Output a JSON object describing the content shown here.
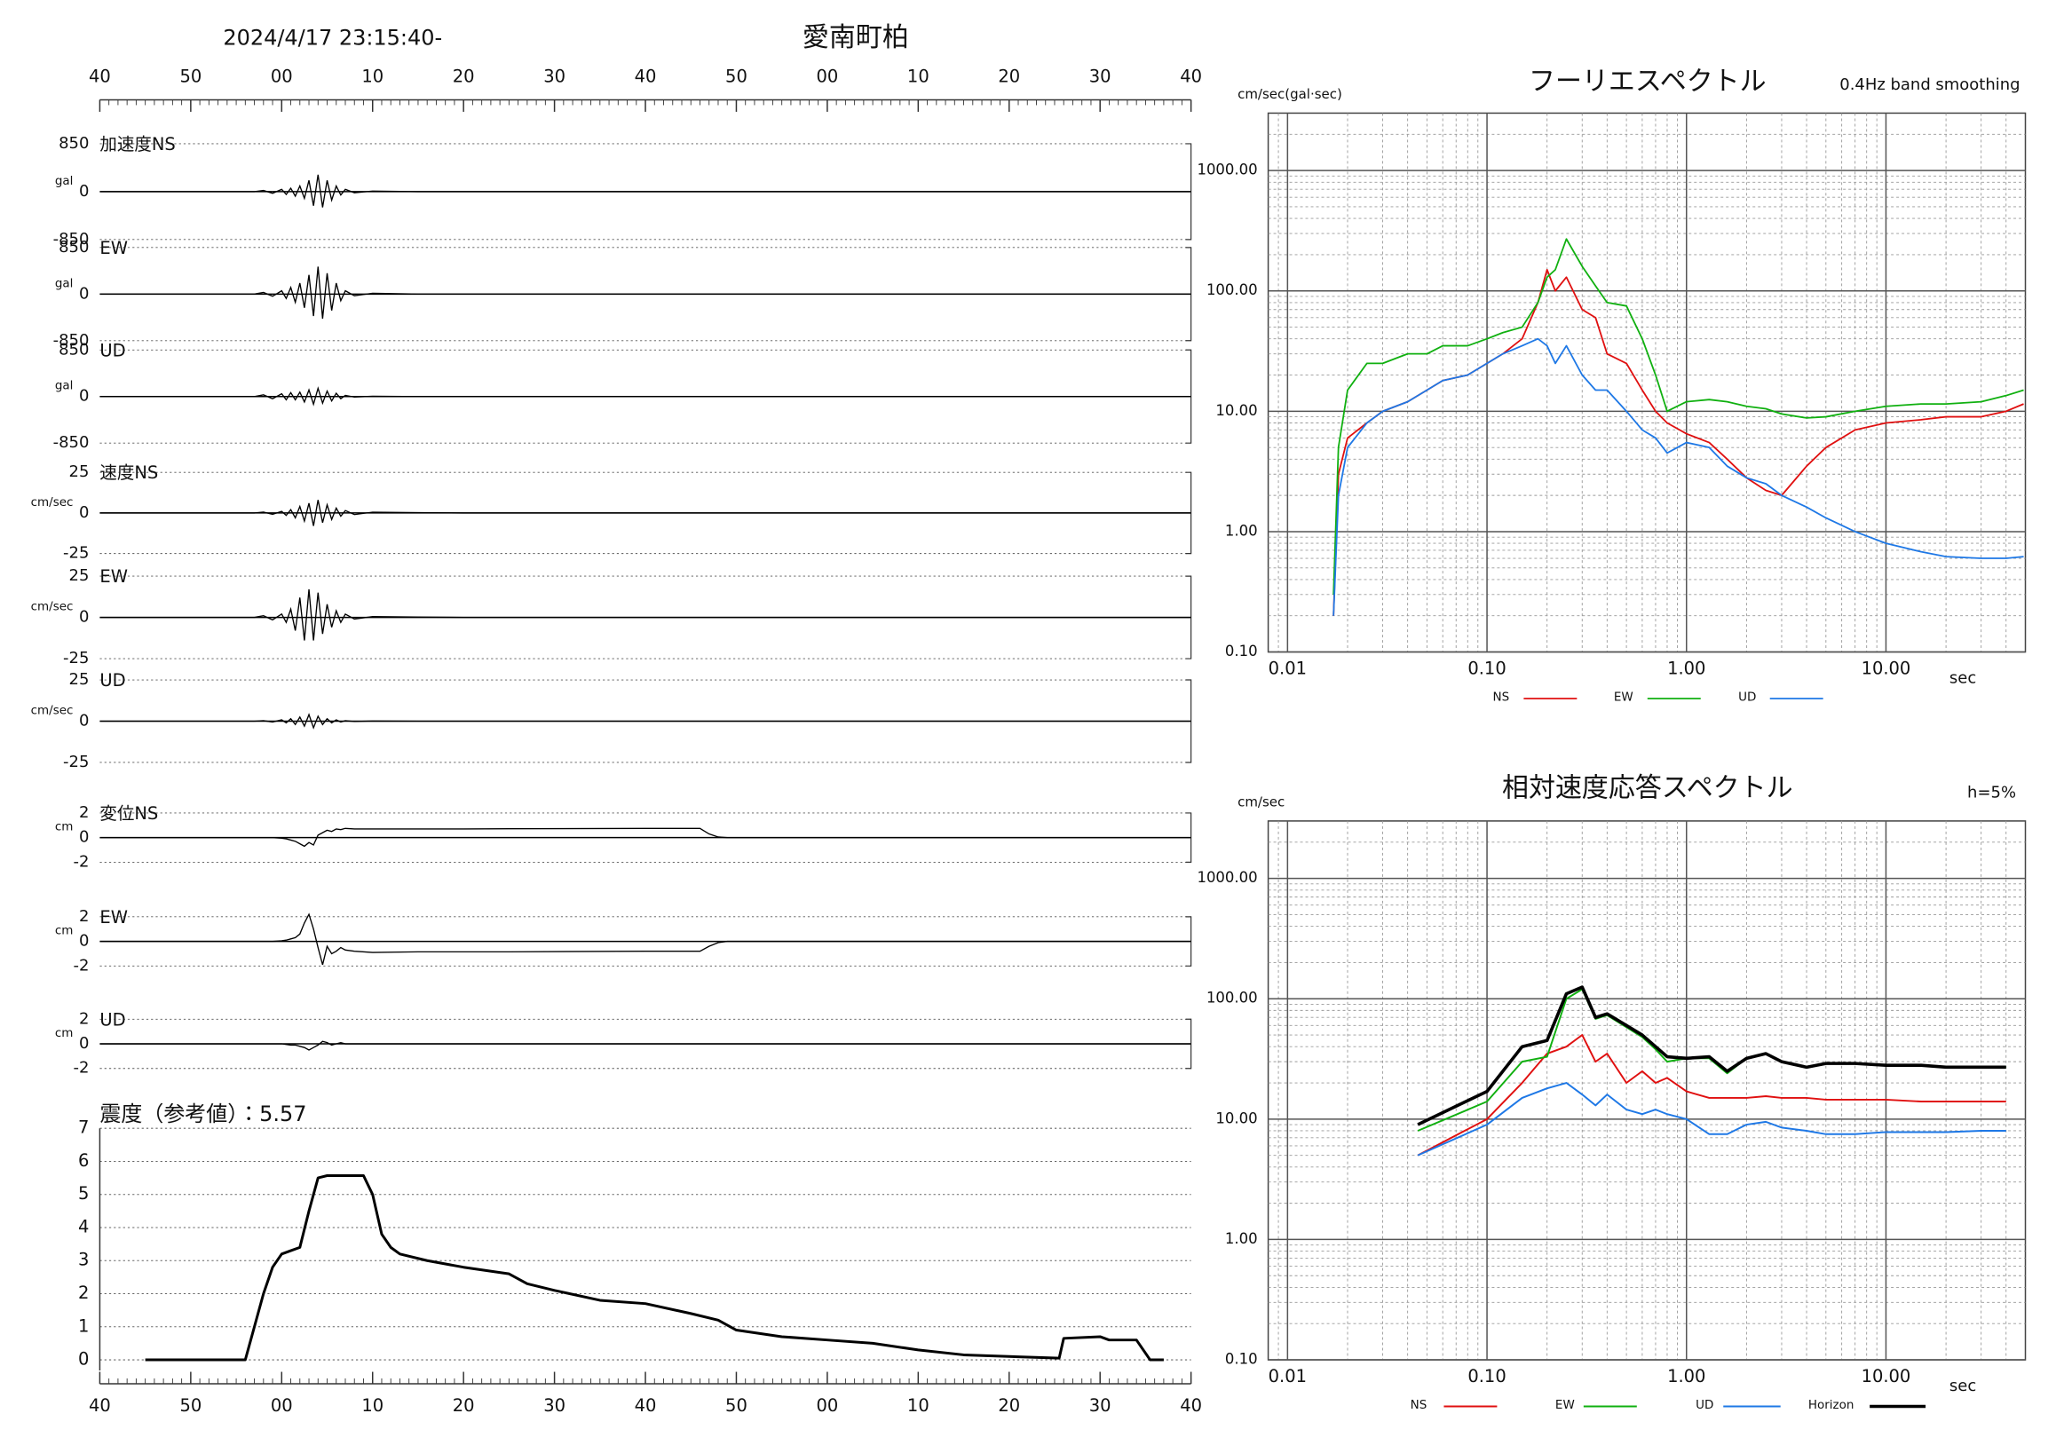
{
  "chart_data": [
    {
      "type": "waveform",
      "title": "愛南町柏",
      "subtitle": "2024/4/17 23:15:40-",
      "xlim": [
        0,
        120
      ],
      "xticks": [
        {
          "value": 0,
          "label": "40"
        },
        {
          "value": 10,
          "label": "50"
        },
        {
          "value": 20,
          "label": "00"
        },
        {
          "value": 30,
          "label": "10"
        },
        {
          "value": 40,
          "label": "20"
        },
        {
          "value": 50,
          "label": "30"
        },
        {
          "value": 60,
          "label": "40"
        },
        {
          "value": 70,
          "label": "50"
        },
        {
          "value": 80,
          "label": "00"
        },
        {
          "value": 90,
          "label": "10"
        },
        {
          "value": 100,
          "label": "20"
        },
        {
          "value": 110,
          "label": "30"
        },
        {
          "value": 120,
          "label": "40"
        }
      ],
      "x": [
        0,
        17,
        18,
        19,
        20,
        20.5,
        21,
        21.5,
        22,
        22.5,
        23,
        23.5,
        24,
        24.5,
        25,
        25.5,
        26,
        26.5,
        27,
        28,
        30,
        35,
        40,
        45,
        60,
        66,
        67,
        68,
        69,
        70,
        120
      ],
      "series": [
        {
          "name": "加速度NS",
          "unit": "gal",
          "color": "#000000",
          "ylim": [
            -850,
            850
          ],
          "yticks": [
            850,
            0,
            -850
          ],
          "values": [
            0,
            0,
            20,
            -30,
            40,
            -50,
            60,
            -80,
            100,
            -120,
            200,
            -250,
            300,
            -280,
            200,
            -150,
            100,
            -60,
            40,
            -20,
            10,
            0,
            0,
            0,
            0,
            0,
            0,
            0,
            0,
            0,
            0
          ]
        },
        {
          "name": "EW",
          "unit": "gal",
          "color": "#000000",
          "ylim": [
            -850,
            850
          ],
          "yticks": [
            850,
            0,
            -850
          ],
          "values": [
            0,
            0,
            30,
            -40,
            60,
            -80,
            120,
            -150,
            200,
            -250,
            350,
            -400,
            500,
            -450,
            380,
            -300,
            200,
            -120,
            60,
            -30,
            15,
            0,
            0,
            0,
            0,
            0,
            0,
            0,
            0,
            0,
            0
          ]
        },
        {
          "name": "UD",
          "unit": "gal",
          "color": "#000000",
          "ylim": [
            -850,
            850
          ],
          "yticks": [
            850,
            0,
            -850
          ],
          "values": [
            0,
            0,
            30,
            -40,
            50,
            -60,
            70,
            -60,
            80,
            -100,
            120,
            -140,
            150,
            -120,
            100,
            -80,
            60,
            -40,
            20,
            -10,
            5,
            0,
            0,
            0,
            0,
            0,
            0,
            0,
            0,
            0,
            0
          ]
        },
        {
          "name": "速度NS",
          "unit": "cm/sec",
          "color": "#000000",
          "ylim": [
            -25,
            25
          ],
          "yticks": [
            25,
            0,
            -25
          ],
          "values": [
            0,
            0,
            0.5,
            -0.8,
            1,
            -1.5,
            2,
            -3,
            4,
            -5,
            6,
            -8,
            8,
            -6,
            5,
            -4,
            3,
            -2,
            1.5,
            -1,
            0.5,
            0.2,
            0,
            0,
            0,
            0,
            0,
            0,
            0,
            0,
            0
          ]
        },
        {
          "name": "EW",
          "unit": "cm/sec",
          "color": "#000000",
          "ylim": [
            -25,
            25
          ],
          "yticks": [
            25,
            0,
            -25
          ],
          "values": [
            0,
            0,
            1,
            -1.5,
            2,
            -3,
            5,
            -8,
            12,
            -14,
            17,
            -14,
            15,
            -10,
            8,
            -6,
            4,
            -3,
            2,
            -1,
            0.5,
            0.2,
            0,
            0,
            0,
            0,
            0,
            0,
            0,
            0,
            0
          ]
        },
        {
          "name": "UD",
          "unit": "cm/sec",
          "color": "#000000",
          "ylim": [
            -25,
            25
          ],
          "yticks": [
            25,
            0,
            -25
          ],
          "values": [
            0,
            0,
            0.3,
            -0.5,
            0.8,
            -1,
            1.5,
            -2,
            2.5,
            -3,
            4,
            -4,
            3,
            -2,
            1.5,
            -1,
            0.8,
            -0.5,
            0.3,
            -0.2,
            0.1,
            0,
            0,
            0,
            0,
            0,
            0,
            0,
            0,
            0,
            0
          ]
        },
        {
          "name": "変位NS",
          "unit": "cm",
          "color": "#000000",
          "ylim": [
            -2,
            2
          ],
          "yticks": [
            2,
            0,
            -2
          ],
          "values": [
            0,
            0,
            0,
            0,
            -0.05,
            -0.1,
            -0.2,
            -0.3,
            -0.5,
            -0.7,
            -0.4,
            -0.6,
            0.2,
            0.4,
            0.6,
            0.5,
            0.7,
            0.65,
            0.75,
            0.7,
            0.7,
            0.7,
            0.7,
            0.72,
            0.75,
            0.75,
            0.3,
            0.05,
            0,
            0,
            0
          ]
        },
        {
          "name": "EW",
          "unit": "cm",
          "color": "#000000",
          "ylim": [
            -2,
            2
          ],
          "yticks": [
            2,
            0,
            -2
          ],
          "values": [
            0,
            0,
            0,
            0,
            0.05,
            0.1,
            0.2,
            0.3,
            0.6,
            1.5,
            2.2,
            1.0,
            -0.5,
            -1.9,
            -0.4,
            -1.0,
            -0.8,
            -0.5,
            -0.7,
            -0.8,
            -0.9,
            -0.85,
            -0.85,
            -0.85,
            -0.8,
            -0.8,
            -0.4,
            -0.1,
            0,
            0,
            0
          ]
        },
        {
          "name": "UD",
          "unit": "cm",
          "color": "#000000",
          "ylim": [
            -2,
            2
          ],
          "yticks": [
            2,
            0,
            -2
          ],
          "values": [
            0,
            0,
            0,
            0,
            0,
            -0.05,
            -0.1,
            -0.1,
            -0.2,
            -0.3,
            -0.5,
            -0.3,
            -0.1,
            0.2,
            0.1,
            -0.1,
            0,
            0.1,
            0,
            0,
            0,
            0,
            0,
            0,
            0,
            0,
            0,
            0,
            0,
            0,
            0
          ]
        }
      ]
    },
    {
      "type": "line",
      "title": "震度（参考値）：5.57",
      "grid": true,
      "log_x": false,
      "log_y": false,
      "xlim": [
        0,
        120
      ],
      "xticks": [
        {
          "value": 0,
          "label": "40"
        },
        {
          "value": 10,
          "label": "50"
        },
        {
          "value": 20,
          "label": "00"
        },
        {
          "value": 30,
          "label": "10"
        },
        {
          "value": 40,
          "label": "20"
        },
        {
          "value": 50,
          "label": "30"
        },
        {
          "value": 60,
          "label": "40"
        },
        {
          "value": 70,
          "label": "50"
        },
        {
          "value": 80,
          "label": "00"
        },
        {
          "value": 90,
          "label": "10"
        },
        {
          "value": 100,
          "label": "20"
        },
        {
          "value": 110,
          "label": "30"
        },
        {
          "value": 120,
          "label": "40"
        }
      ],
      "ylim": [
        0,
        7
      ],
      "yticks": [
        0,
        1,
        2,
        3,
        4,
        5,
        6,
        7
      ],
      "x": [
        5,
        16,
        17,
        18,
        19,
        20,
        21,
        22,
        23,
        24,
        25,
        29,
        30,
        31,
        32,
        33,
        36,
        40,
        45,
        47,
        50,
        55,
        60,
        65,
        68,
        70,
        75,
        80,
        85,
        90,
        95,
        105.5,
        106,
        110,
        111,
        114,
        115.5,
        117
      ],
      "series": [
        {
          "color": "#000000",
          "values": [
            0,
            0,
            1,
            2,
            2.8,
            3.2,
            3.3,
            3.4,
            4.5,
            5.5,
            5.57,
            5.57,
            5,
            3.8,
            3.4,
            3.2,
            3.0,
            2.8,
            2.6,
            2.3,
            2.1,
            1.8,
            1.7,
            1.4,
            1.2,
            0.9,
            0.7,
            0.6,
            0.5,
            0.3,
            0.15,
            0.05,
            0.65,
            0.7,
            0.6,
            0.6,
            0,
            0
          ]
        }
      ]
    },
    {
      "type": "line",
      "title": "フーリエスペクトル",
      "note": "0.4Hz band smoothing",
      "y_label": "cm/sec(gal·sec)",
      "x_label": "sec",
      "grid": true,
      "log_x": true,
      "log_y": true,
      "xlim": [
        0.008,
        50
      ],
      "xticks": [
        0.01,
        {
          "value": 0.1,
          "label": "0.10"
        },
        {
          "value": 1,
          "label": "1.00"
        },
        {
          "value": 10,
          "label": "10.00"
        }
      ],
      "ylim": [
        0.1,
        3000
      ],
      "yticks": [
        {
          "value": 0.1,
          "label": "0.10"
        },
        {
          "value": 1,
          "label": "1.00"
        },
        {
          "value": 10,
          "label": "10.00"
        },
        {
          "value": 100,
          "label": "100.00"
        },
        {
          "value": 1000,
          "label": "1000.00"
        }
      ],
      "x": [
        0.017,
        0.018,
        0.02,
        0.025,
        0.03,
        0.04,
        0.05,
        0.06,
        0.08,
        0.1,
        0.12,
        0.15,
        0.18,
        0.2,
        0.22,
        0.25,
        0.3,
        0.35,
        0.4,
        0.5,
        0.6,
        0.7,
        0.8,
        1.0,
        1.3,
        1.6,
        2,
        2.5,
        3,
        4,
        5,
        7,
        10,
        15,
        20,
        30,
        40,
        49
      ],
      "series": [
        {
          "name": "NS",
          "color": "#e01010",
          "values": [
            0.2,
            3,
            6,
            8,
            10,
            12,
            15,
            18,
            20,
            25,
            30,
            40,
            80,
            150,
            100,
            130,
            70,
            60,
            30,
            25,
            15,
            10,
            8,
            6.5,
            5.5,
            4,
            2.8,
            2.2,
            2.0,
            3.5,
            5,
            7,
            8,
            8.5,
            9,
            9,
            10,
            11.5
          ]
        },
        {
          "name": "EW",
          "color": "#10b010",
          "values": [
            0.3,
            5,
            15,
            25,
            25,
            30,
            30,
            35,
            35,
            40,
            45,
            50,
            80,
            130,
            150,
            270,
            160,
            110,
            80,
            75,
            40,
            20,
            10,
            12,
            12.5,
            12,
            11,
            10.5,
            9.5,
            8.8,
            9,
            10,
            11,
            11.5,
            11.5,
            12,
            13.5,
            15
          ]
        },
        {
          "name": "UD",
          "color": "#1e78e6",
          "values": [
            0.2,
            2,
            5,
            8,
            10,
            12,
            15,
            18,
            20,
            25,
            30,
            35,
            40,
            35,
            25,
            35,
            20,
            15,
            15,
            10,
            7,
            6,
            4.5,
            5.5,
            5,
            3.5,
            2.8,
            2.5,
            2.0,
            1.6,
            1.3,
            1.0,
            0.8,
            0.68,
            0.62,
            0.6,
            0.6,
            0.62
          ]
        }
      ]
    },
    {
      "type": "line",
      "title": "相対速度応答スペクトル",
      "note": "h=5%",
      "y_label": "cm/sec",
      "x_label": "sec",
      "grid": true,
      "log_x": true,
      "log_y": true,
      "xlim": [
        0.008,
        50
      ],
      "xticks": [
        0.01,
        {
          "value": 0.1,
          "label": "0.10"
        },
        {
          "value": 1,
          "label": "1.00"
        },
        {
          "value": 10,
          "label": "10.00"
        }
      ],
      "ylim": [
        0.1,
        3000
      ],
      "yticks": [
        {
          "value": 0.1,
          "label": "0.10"
        },
        {
          "value": 1,
          "label": "1.00"
        },
        {
          "value": 10,
          "label": "10.00"
        },
        {
          "value": 100,
          "label": "100.00"
        },
        {
          "value": 1000,
          "label": "1000.00"
        }
      ],
      "x": [
        0.045,
        0.1,
        0.15,
        0.2,
        0.25,
        0.3,
        0.35,
        0.4,
        0.5,
        0.6,
        0.7,
        0.8,
        1.0,
        1.3,
        1.6,
        2,
        2.5,
        3,
        4,
        5,
        7,
        10,
        15,
        20,
        30,
        40
      ],
      "series": [
        {
          "name": "NS",
          "color": "#e01010",
          "values": [
            5,
            10,
            20,
            35,
            40,
            50,
            30,
            35,
            20,
            25,
            20,
            22,
            17,
            15,
            15,
            15,
            15.5,
            15,
            15,
            14.5,
            14.5,
            14.5,
            14,
            14,
            14,
            14
          ]
        },
        {
          "name": "EW",
          "color": "#10b010",
          "values": [
            8,
            14,
            30,
            33,
            100,
            120,
            68,
            73,
            58,
            48,
            38,
            30,
            32,
            32,
            24,
            32,
            35,
            30,
            27,
            29,
            29,
            28,
            28,
            27,
            27,
            27
          ]
        },
        {
          "name": "UD",
          "color": "#1e78e6",
          "values": [
            5,
            9,
            15,
            18,
            20,
            16,
            13,
            16,
            12,
            11,
            12,
            11,
            10,
            7.5,
            7.5,
            9,
            9.5,
            8.5,
            8,
            7.5,
            7.5,
            7.8,
            7.8,
            7.8,
            8,
            8
          ]
        },
        {
          "name": "Horizon",
          "color": "#000000",
          "values": [
            9,
            17,
            40,
            45,
            110,
            125,
            70,
            75,
            60,
            50,
            40,
            33,
            32,
            33,
            25,
            32,
            35,
            30,
            27,
            29,
            29,
            28,
            28,
            27,
            27,
            27
          ]
        }
      ]
    }
  ]
}
